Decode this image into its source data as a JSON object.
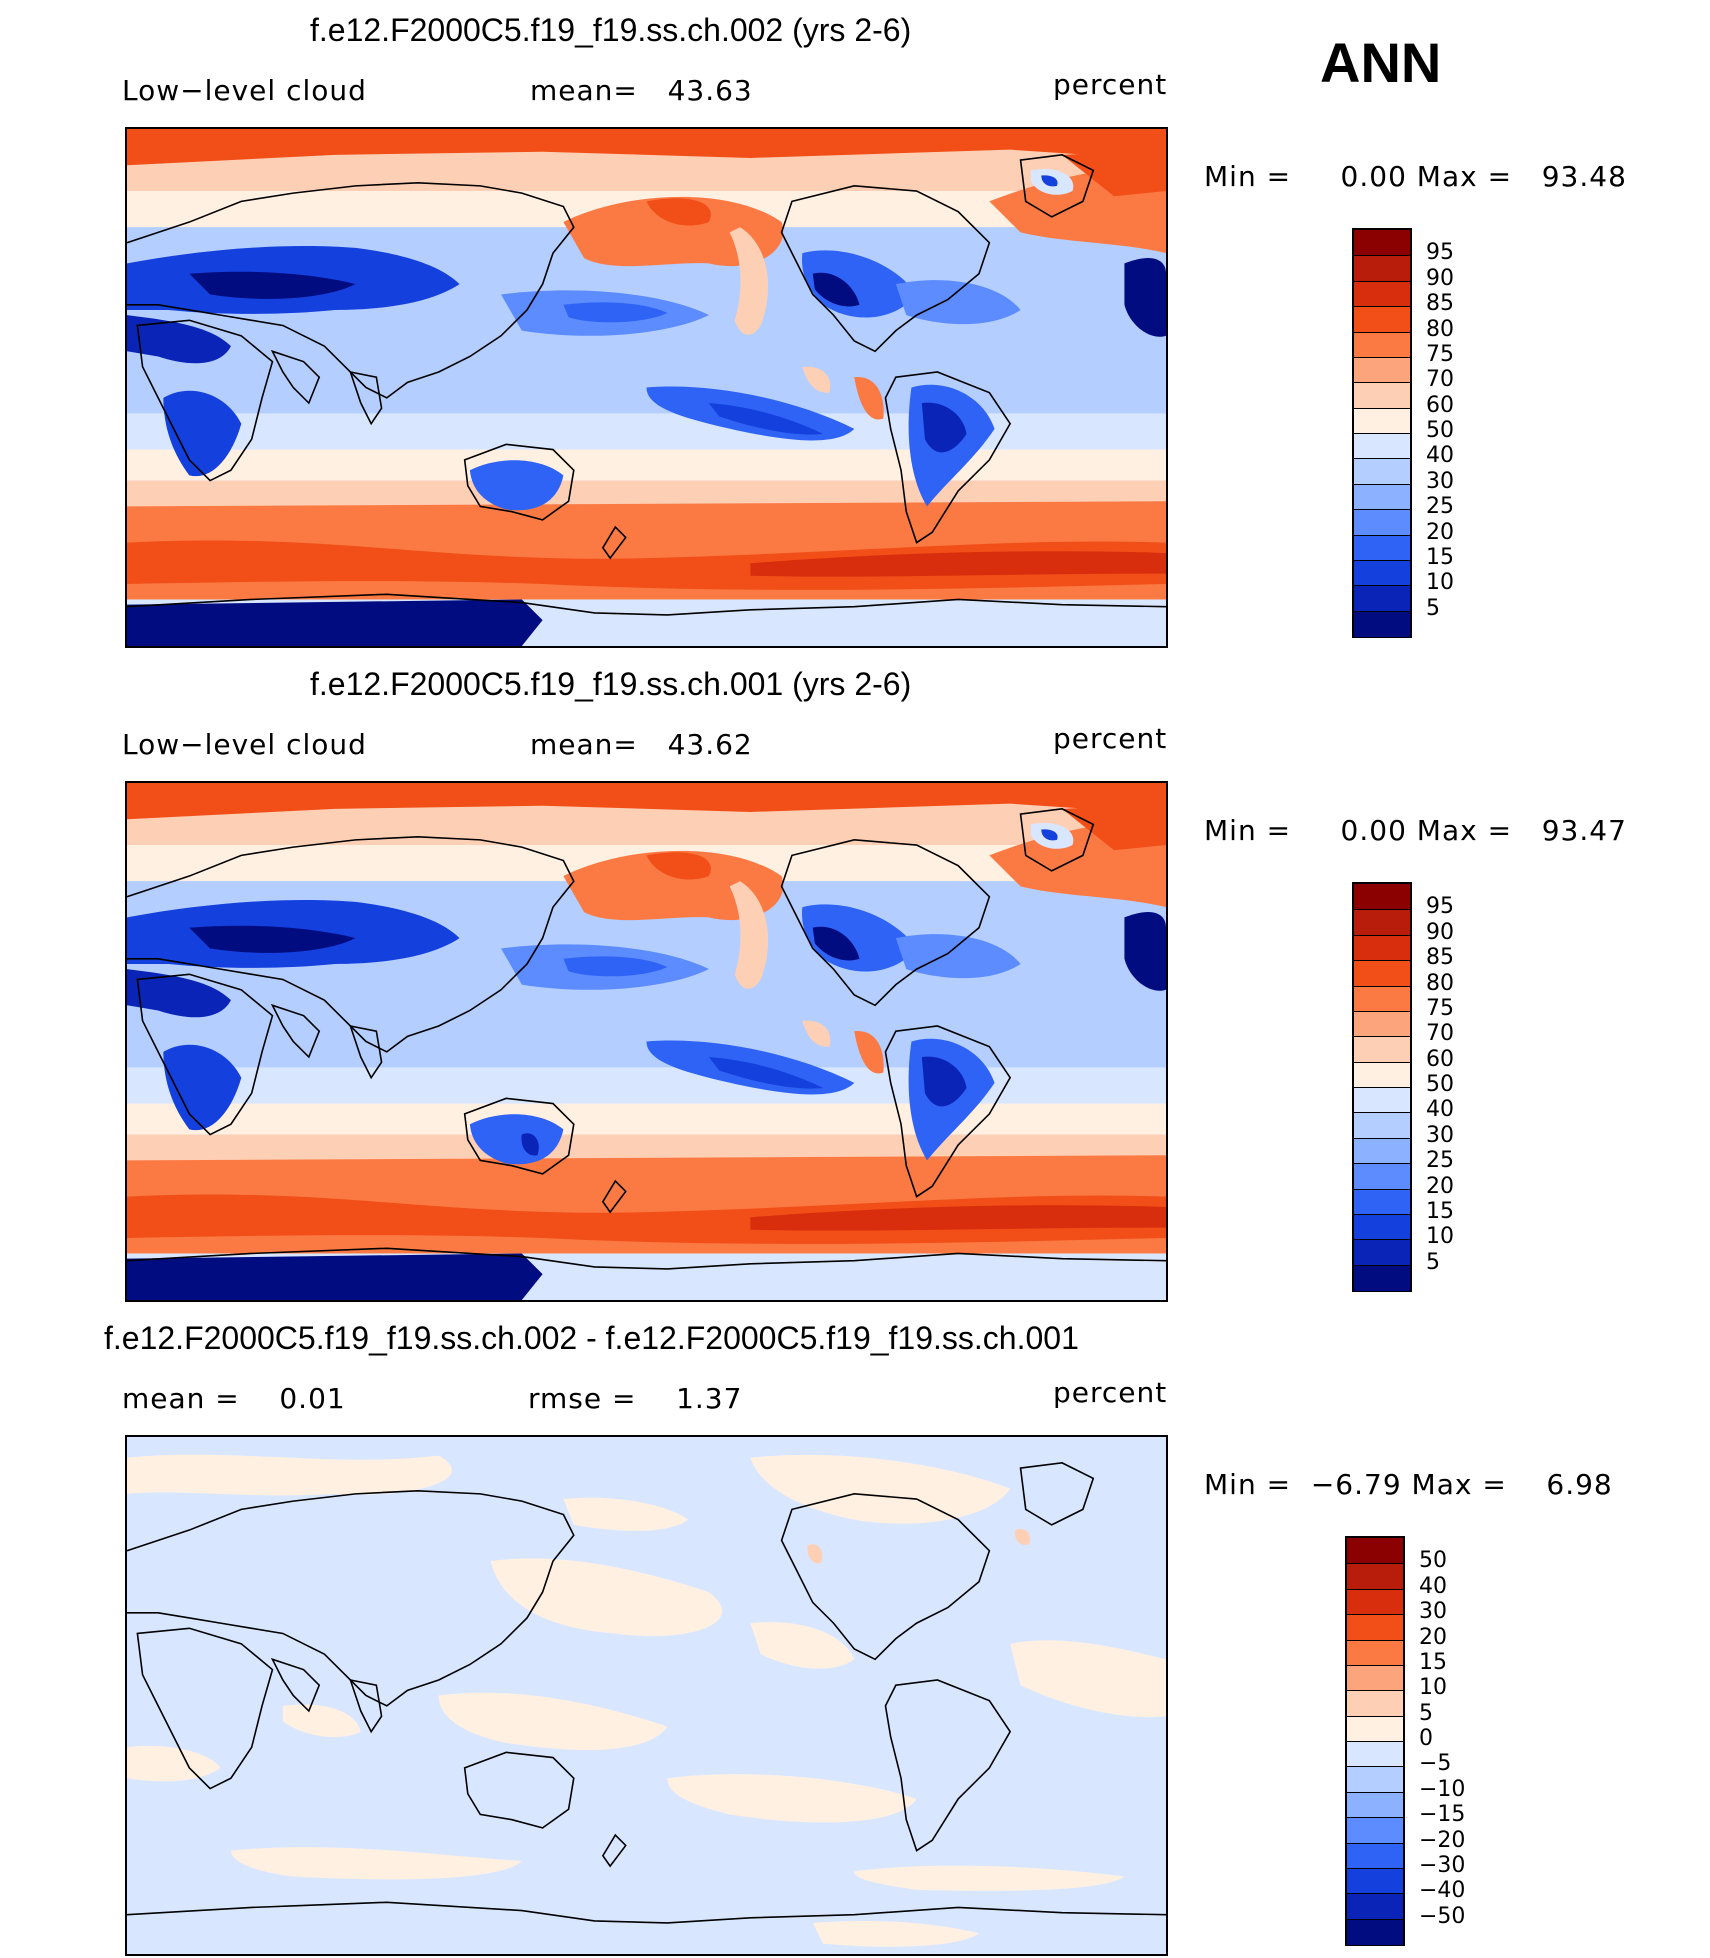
{
  "season": "ANN",
  "panels": [
    {
      "title": "f.e12.F2000C5.f19_f19.ss.ch.002 (yrs 2-6)",
      "left_label": "Low−level cloud",
      "center_label": "mean=   43.63",
      "unit": "percent",
      "minmax": "Min =     0.00 Max =   93.48",
      "kind": "abs"
    },
    {
      "title": "f.e12.F2000C5.f19_f19.ss.ch.001 (yrs 2-6)",
      "left_label": "Low−level cloud",
      "center_label": "mean=   43.62",
      "unit": "percent",
      "minmax": "Min =     0.00 Max =   93.47",
      "kind": "abs"
    },
    {
      "title": "f.e12.F2000C5.f19_f19.ss.ch.002 - f.e12.F2000C5.f19_f19.ss.ch.001",
      "left_label": "mean =    0.01",
      "center_label": "rmse =    1.37",
      "unit": "percent",
      "minmax": "Min =  −6.79 Max =    6.98",
      "kind": "diff"
    }
  ],
  "colorbars": {
    "abs": {
      "levels": [
        "95",
        "90",
        "85",
        "80",
        "75",
        "70",
        "60",
        "50",
        "40",
        "30",
        "25",
        "20",
        "15",
        "10",
        "5"
      ],
      "colors": [
        "#8b0000",
        "#b81c0a",
        "#d92e0d",
        "#f24f18",
        "#fb7a44",
        "#fca57d",
        "#fdd0b6",
        "#fff0e2",
        "#d8e7ff",
        "#b3ceff",
        "#8cb1ff",
        "#5c8cff",
        "#2f63f5",
        "#1440dd",
        "#0a24b8",
        "#000c80"
      ]
    },
    "diff": {
      "levels": [
        "50",
        "40",
        "30",
        "20",
        "15",
        "10",
        "5",
        "0",
        "−5",
        "−10",
        "−15",
        "−20",
        "−30",
        "−40",
        "−50"
      ],
      "colors": [
        "#8b0000",
        "#b81c0a",
        "#d92e0d",
        "#f24f18",
        "#fb7a44",
        "#fca57d",
        "#fdd0b6",
        "#fff0e2",
        "#d8e7ff",
        "#b3ceff",
        "#8cb1ff",
        "#5c8cff",
        "#2f63f5",
        "#1440dd",
        "#0a24b8",
        "#000c80"
      ]
    }
  },
  "chart_data": [
    {
      "type": "heatmap",
      "title": "f.e12.F2000C5.f19_f19.ss.ch.002 (yrs 2-6)",
      "variable": "Low-level cloud",
      "unit": "percent",
      "mean": 43.63,
      "min": 0.0,
      "max": 93.48,
      "contour_levels": [
        5,
        10,
        15,
        20,
        25,
        30,
        40,
        50,
        60,
        70,
        75,
        80,
        85,
        90,
        95
      ]
    },
    {
      "type": "heatmap",
      "title": "f.e12.F2000C5.f19_f19.ss.ch.001 (yrs 2-6)",
      "variable": "Low-level cloud",
      "unit": "percent",
      "mean": 43.62,
      "min": 0.0,
      "max": 93.47,
      "contour_levels": [
        5,
        10,
        15,
        20,
        25,
        30,
        40,
        50,
        60,
        70,
        75,
        80,
        85,
        90,
        95
      ]
    },
    {
      "type": "heatmap",
      "title": "f.e12.F2000C5.f19_f19.ss.ch.002 - f.e12.F2000C5.f19_f19.ss.ch.001",
      "unit": "percent",
      "mean": 0.01,
      "rmse": 1.37,
      "min": -6.79,
      "max": 6.98,
      "contour_levels": [
        -50,
        -40,
        -30,
        -20,
        -15,
        -10,
        -5,
        0,
        5,
        10,
        15,
        20,
        30,
        40,
        50
      ]
    }
  ]
}
